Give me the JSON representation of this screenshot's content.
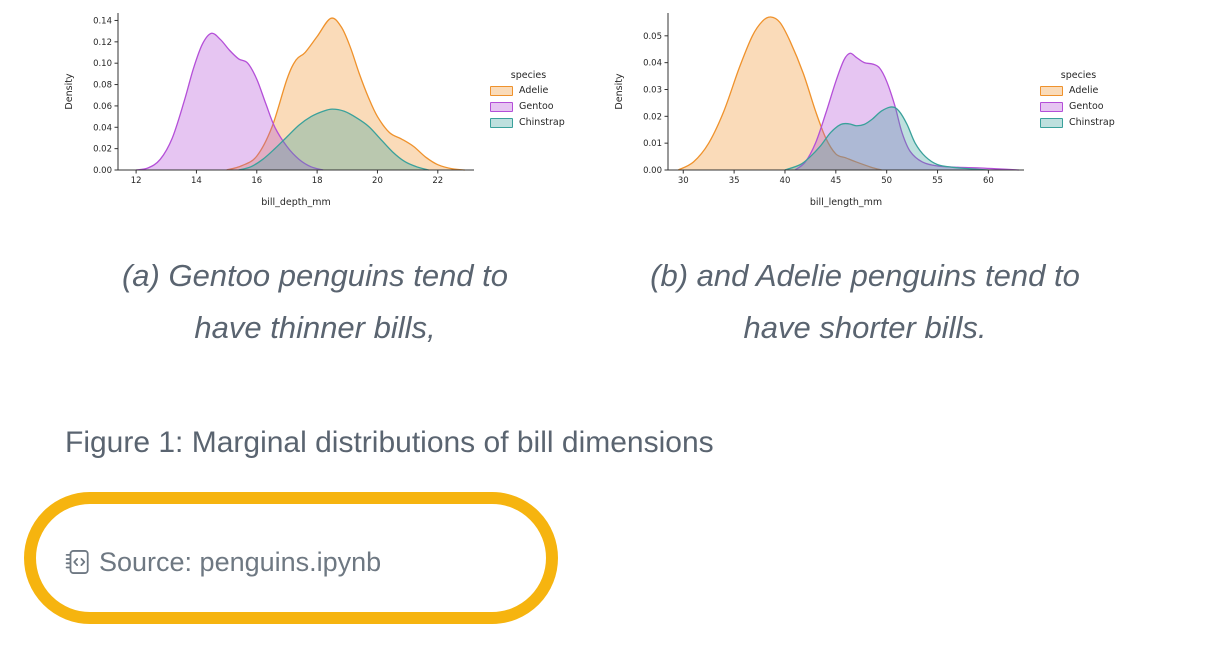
{
  "chart_data": [
    {
      "type": "area",
      "title": "",
      "xlabel": "bill_depth_mm",
      "ylabel": "Density",
      "xlim": [
        11.4,
        23.2
      ],
      "ylim": [
        0,
        0.147
      ],
      "xticks": [
        12,
        14,
        16,
        18,
        20,
        22
      ],
      "xtick_labels": [
        "12",
        "14",
        "16",
        "18",
        "20",
        "22"
      ],
      "yticks": [
        0,
        0.02,
        0.04,
        0.06,
        0.08,
        0.1,
        0.12,
        0.14
      ],
      "ytick_labels": [
        "0.00",
        "0.02",
        "0.04",
        "0.06",
        "0.08",
        "0.10",
        "0.12",
        "0.14"
      ],
      "grid": false,
      "legend": {
        "title": "species",
        "position": "right"
      },
      "series": [
        {
          "name": "Adelie",
          "color": "#ef922c",
          "points": [
            [
              15.0,
              0
            ],
            [
              15.5,
              0.004
            ],
            [
              16.0,
              0.013
            ],
            [
              16.5,
              0.04
            ],
            [
              17.0,
              0.085
            ],
            [
              17.3,
              0.103
            ],
            [
              17.6,
              0.11
            ],
            [
              18.0,
              0.125
            ],
            [
              18.45,
              0.142
            ],
            [
              18.8,
              0.134
            ],
            [
              19.1,
              0.115
            ],
            [
              19.4,
              0.09
            ],
            [
              19.7,
              0.068
            ],
            [
              20.0,
              0.05
            ],
            [
              20.4,
              0.035
            ],
            [
              20.8,
              0.029
            ],
            [
              21.2,
              0.022
            ],
            [
              21.6,
              0.012
            ],
            [
              22.0,
              0.005
            ],
            [
              22.5,
              0.001
            ],
            [
              22.9,
              0
            ]
          ]
        },
        {
          "name": "Gentoo",
          "color": "#b44fd8",
          "points": [
            [
              12.0,
              0
            ],
            [
              12.4,
              0.002
            ],
            [
              12.8,
              0.01
            ],
            [
              13.2,
              0.03
            ],
            [
              13.6,
              0.065
            ],
            [
              13.9,
              0.095
            ],
            [
              14.2,
              0.118
            ],
            [
              14.5,
              0.128
            ],
            [
              14.8,
              0.122
            ],
            [
              15.1,
              0.112
            ],
            [
              15.4,
              0.104
            ],
            [
              15.7,
              0.1
            ],
            [
              16.0,
              0.085
            ],
            [
              16.3,
              0.062
            ],
            [
              16.6,
              0.04
            ],
            [
              17.0,
              0.022
            ],
            [
              17.4,
              0.01
            ],
            [
              17.8,
              0.003
            ],
            [
              18.2,
              0
            ]
          ]
        },
        {
          "name": "Chinstrap",
          "color": "#3aa19b",
          "points": [
            [
              15.4,
              0
            ],
            [
              15.8,
              0.003
            ],
            [
              16.2,
              0.01
            ],
            [
              16.6,
              0.02
            ],
            [
              17.0,
              0.031
            ],
            [
              17.4,
              0.042
            ],
            [
              17.8,
              0.05
            ],
            [
              18.2,
              0.055
            ],
            [
              18.5,
              0.057
            ],
            [
              18.9,
              0.055
            ],
            [
              19.3,
              0.049
            ],
            [
              19.7,
              0.041
            ],
            [
              20.1,
              0.029
            ],
            [
              20.5,
              0.017
            ],
            [
              20.9,
              0.008
            ],
            [
              21.3,
              0.003
            ],
            [
              21.7,
              0
            ]
          ]
        }
      ]
    },
    {
      "type": "area",
      "title": "",
      "xlabel": "bill_length_mm",
      "ylabel": "Density",
      "xlim": [
        28.5,
        63.5
      ],
      "ylim": [
        0,
        0.0585
      ],
      "xticks": [
        30,
        35,
        40,
        45,
        50,
        55,
        60
      ],
      "xtick_labels": [
        "30",
        "35",
        "40",
        "45",
        "50",
        "55",
        "60"
      ],
      "yticks": [
        0,
        0.01,
        0.02,
        0.03,
        0.04,
        0.05
      ],
      "ytick_labels": [
        "0.00",
        "0.01",
        "0.02",
        "0.03",
        "0.04",
        "0.05"
      ],
      "grid": false,
      "legend": {
        "title": "species",
        "position": "right"
      },
      "series": [
        {
          "name": "Adelie",
          "color": "#ef922c",
          "points": [
            [
              29.5,
              0
            ],
            [
              31,
              0.003
            ],
            [
              32.5,
              0.01
            ],
            [
              34,
              0.022
            ],
            [
              35.5,
              0.038
            ],
            [
              36.8,
              0.05
            ],
            [
              37.8,
              0.0555
            ],
            [
              38.6,
              0.057
            ],
            [
              39.5,
              0.055
            ],
            [
              40.5,
              0.048
            ],
            [
              41.8,
              0.036
            ],
            [
              43,
              0.022
            ],
            [
              44,
              0.012
            ],
            [
              45,
              0.006
            ],
            [
              46,
              0.0045
            ],
            [
              47,
              0.003
            ],
            [
              48.5,
              0.001
            ],
            [
              49.5,
              0
            ]
          ]
        },
        {
          "name": "Gentoo",
          "color": "#b44fd8",
          "points": [
            [
              41,
              0
            ],
            [
              42,
              0.003
            ],
            [
              43,
              0.01
            ],
            [
              44,
              0.021
            ],
            [
              45,
              0.033
            ],
            [
              45.8,
              0.041
            ],
            [
              46.4,
              0.0435
            ],
            [
              47,
              0.042
            ],
            [
              47.8,
              0.04
            ],
            [
              48.6,
              0.0395
            ],
            [
              49.3,
              0.038
            ],
            [
              50,
              0.033
            ],
            [
              50.8,
              0.024
            ],
            [
              51.5,
              0.014
            ],
            [
              52.3,
              0.007
            ],
            [
              53.5,
              0.003
            ],
            [
              55,
              0.0015
            ],
            [
              57,
              0.001
            ],
            [
              59,
              0.0008
            ],
            [
              61,
              0.0004
            ],
            [
              63,
              0
            ]
          ]
        },
        {
          "name": "Chinstrap",
          "color": "#3aa19b",
          "points": [
            [
              40,
              0
            ],
            [
              41.5,
              0.002
            ],
            [
              42.5,
              0.005
            ],
            [
              43.5,
              0.009
            ],
            [
              44.5,
              0.014
            ],
            [
              45.5,
              0.017
            ],
            [
              46.3,
              0.0172
            ],
            [
              47,
              0.0165
            ],
            [
              47.8,
              0.017
            ],
            [
              48.6,
              0.019
            ],
            [
              49.5,
              0.022
            ],
            [
              50.5,
              0.0235
            ],
            [
              51.2,
              0.022
            ],
            [
              52,
              0.017
            ],
            [
              52.8,
              0.01
            ],
            [
              53.8,
              0.005
            ],
            [
              55,
              0.002
            ],
            [
              56.5,
              0.001
            ],
            [
              58,
              0.0005
            ],
            [
              60,
              0
            ]
          ]
        }
      ]
    }
  ],
  "figure": {
    "caption": "Figure 1: Marginal distributions of bill dimensions",
    "panels": [
      {
        "label": "a",
        "caption_lines": [
          "(a) Gentoo penguins tend to",
          "have thinner bills,"
        ]
      },
      {
        "label": "b",
        "caption_lines": [
          "(b) and Adelie penguins tend to",
          "have shorter bills."
        ]
      }
    ]
  },
  "source": {
    "label": "Source: penguins.ipynb",
    "icon": "journal-code-icon"
  },
  "annotation": {
    "shape": "rounded-ellipse",
    "color": "#f6b40f"
  },
  "colors": {
    "caption_text": "#5a6470",
    "source_text": "#6e7882",
    "axis_text": "#262626"
  }
}
